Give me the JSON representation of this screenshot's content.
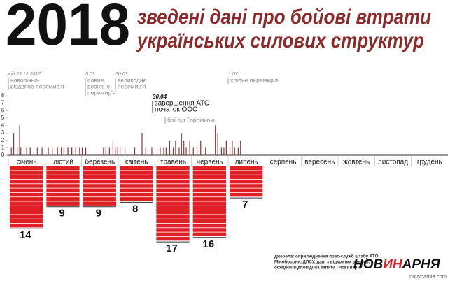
{
  "chart_data": {
    "type": "bar",
    "title": "2018",
    "subtitle": [
      "зведені дані про бойові втрати",
      "українських силових структур"
    ],
    "categories": [
      "січень",
      "лютий",
      "березень",
      "квітень",
      "травень",
      "червень",
      "липень",
      "серпень",
      "вересень",
      "жовтень",
      "листопад",
      "грудень"
    ],
    "daily": [
      [
        0,
        0,
        1,
        0,
        3,
        0,
        0,
        1,
        0,
        4,
        1,
        0,
        0,
        0,
        0,
        1,
        0,
        0,
        1,
        0,
        0,
        0,
        0,
        0,
        1,
        0,
        0,
        0,
        1,
        0,
        0
      ],
      [
        0,
        0,
        1,
        0,
        0,
        1,
        0,
        0,
        0,
        1,
        0,
        0,
        1,
        0,
        1,
        0,
        0,
        1,
        0,
        0,
        1,
        0,
        0,
        1,
        0,
        0,
        1,
        0
      ],
      [
        1,
        0,
        0,
        1,
        0,
        0,
        0,
        0,
        0,
        0,
        0,
        0,
        0,
        0,
        0,
        0,
        0,
        0,
        1,
        0,
        1,
        0,
        0,
        1,
        0,
        0,
        2,
        0,
        1,
        0,
        1
      ],
      [
        0,
        1,
        0,
        0,
        0,
        1,
        0,
        0,
        0,
        0,
        0,
        0,
        0,
        1,
        0,
        0,
        0,
        0,
        0,
        3,
        0,
        0,
        1,
        0,
        0,
        0,
        0,
        1,
        0,
        0
      ],
      [
        0,
        0,
        0,
        0,
        1,
        0,
        0,
        1,
        0,
        1,
        0,
        0,
        2,
        0,
        0,
        1,
        0,
        2,
        0,
        0,
        1,
        0,
        3,
        0,
        2,
        0,
        1,
        0,
        0,
        2,
        0
      ],
      [
        0,
        1,
        0,
        0,
        1,
        0,
        0,
        2,
        0,
        0,
        0,
        1,
        0,
        0,
        0,
        0,
        0,
        0,
        0,
        4,
        0,
        3,
        0,
        0,
        1,
        0,
        1,
        0,
        2,
        0
      ],
      [
        0,
        1,
        0,
        2,
        0,
        1,
        0,
        0,
        1,
        0,
        2,
        0,
        0,
        0,
        0,
        0,
        0,
        0,
        0,
        0,
        0,
        0,
        0,
        0,
        0,
        0,
        0,
        0,
        0,
        0,
        0
      ],
      null,
      null,
      null,
      null,
      null
    ],
    "totals": [
      14,
      9,
      9,
      8,
      17,
      16,
      7,
      null,
      null,
      null,
      null,
      null
    ],
    "color": "#8b3a3a",
    "list_color": "#e11f26",
    "ylim": [
      0,
      8
    ],
    "yticks": [
      0,
      1,
      2,
      3,
      4,
      5,
      6,
      7,
      8
    ],
    "annotations": [
      {
        "date": "від 23.12.2017",
        "lines": [
          "новорічно-",
          "різдвяне перемир'я"
        ]
      },
      {
        "date": "5.03",
        "lines": [
          "повне",
          "весняне",
          "перемир'я"
        ]
      },
      {
        "date": "30.03",
        "lines": [
          "великоднє",
          "перемир'я"
        ]
      },
      {
        "date": "1.07",
        "lines": [
          "хлібне перемир'я"
        ]
      },
      {
        "date": "30.04",
        "lines": [
          "завершення АТО",
          "початок ООС"
        ]
      },
      {
        "date": null,
        "lines": [
          "бої під Горлівкою"
        ]
      }
    ],
    "source": [
      "джерела: оприлюднення прес-служб штабу АТО,",
      "Міноборони, ДПСУ, дані з відкритих джерел,",
      "офіційні відповіді на запити \"Новинарні\""
    ],
    "logo": [
      "НОВ",
      "ИН",
      "АРНЯ"
    ],
    "site": "novynarnia.com"
  }
}
